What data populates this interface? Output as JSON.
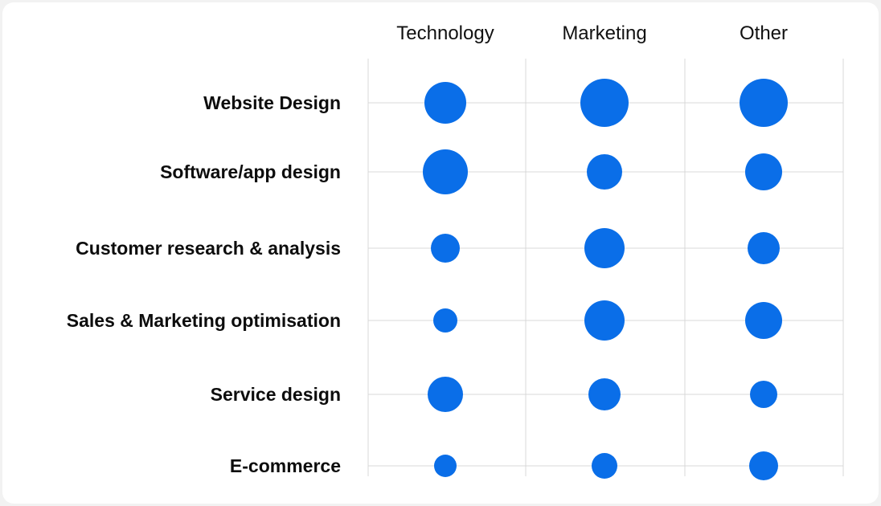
{
  "chart_data": {
    "type": "bubble-matrix",
    "columns": [
      "Technology",
      "Marketing",
      "Other"
    ],
    "rows": [
      "Website Design",
      "Software/app design",
      "Customer research & analysis",
      "Sales & Marketing optimisation",
      "Service design",
      "E-commerce"
    ],
    "values": [
      [
        26,
        30,
        30
      ],
      [
        28,
        22,
        23
      ],
      [
        18,
        25,
        20
      ],
      [
        15,
        25,
        23
      ],
      [
        22,
        20,
        17
      ],
      [
        14,
        16,
        18
      ]
    ],
    "grid": true,
    "bubble_color": "#0a6ee8",
    "grid_color": "#d9d9d9"
  }
}
